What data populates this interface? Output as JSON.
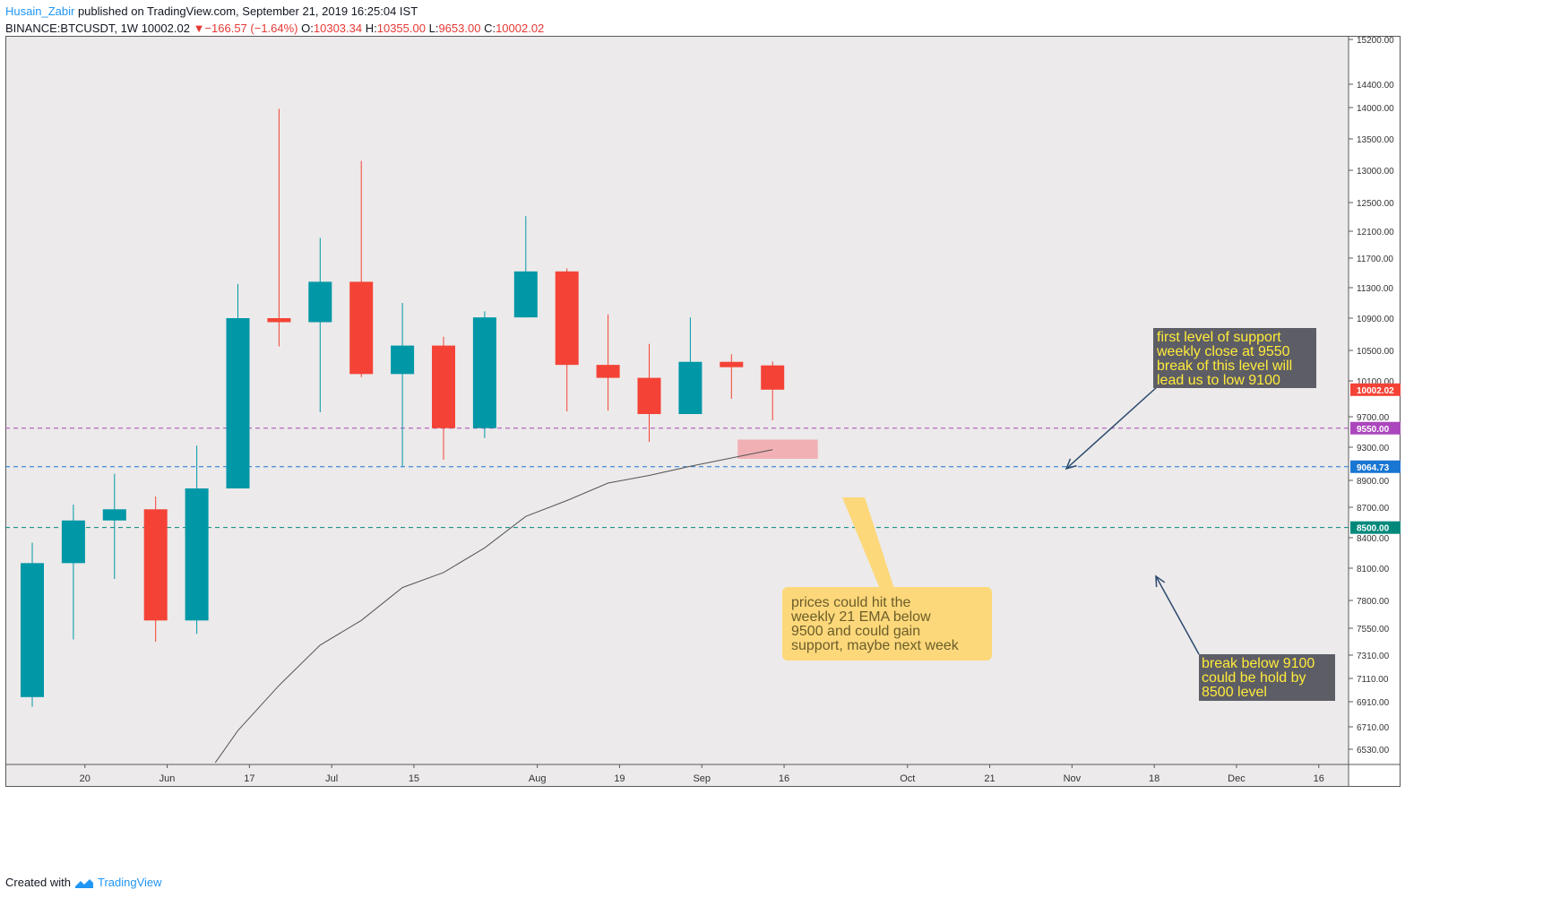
{
  "header": {
    "author": "Husain_Zabir",
    "published_text": "published on TradingView.com, September 21, 2019 16:25:04 IST",
    "symbol": "BINANCE:BTCUSDT, 1W",
    "last": "10002.02",
    "change": "−166.57 (−1.64%)",
    "open_label": "O:",
    "open": "10303.34",
    "high_label": "H:",
    "high": "10355.00",
    "low_label": "L:",
    "low": "9653.00",
    "close_label": "C:",
    "close": "10002.02"
  },
  "footer": {
    "created_with": "Created with",
    "brand": "TradingView"
  },
  "colors": {
    "up": "#0097a7",
    "down": "#f44336",
    "ema": "#555555",
    "support_purple": "#ab47bc",
    "support_blue": "#1976d2",
    "support_green": "#00897b",
    "bg": "#eceaea",
    "callout_dark": "#5d5d66",
    "callout_yellow_text": "#ffeb3b",
    "callout_light": "#fdd87a",
    "zone": "#f2a6aa"
  },
  "chart_data": {
    "type": "candlestick",
    "interval": "1W",
    "y_ticks": [
      15200,
      14400,
      14000,
      13500,
      13000,
      12500,
      12100,
      11700,
      11300,
      10900,
      10500,
      10100,
      9700,
      9300,
      8900,
      8700,
      8400,
      8100,
      7800,
      7550,
      7310,
      7110,
      6910,
      6710,
      6530
    ],
    "y_tick_labels": [
      "15200.00",
      "14400.00",
      "14000.00",
      "13500.00",
      "13000.00",
      "12500.00",
      "12100.00",
      "11700.00",
      "11300.00",
      "10900.00",
      "10500.00",
      "10100.00",
      "9700.00",
      "9300.00",
      "8900.00",
      "8700.00",
      "8400.00",
      "8100.00",
      "7800.00",
      "7550.00",
      "7310.00",
      "7110.00",
      "6910.00",
      "6710.00",
      "6530.00"
    ],
    "x_ticks": [
      {
        "label": "20",
        "i": 1.28
      },
      {
        "label": "Jun",
        "i": 3.28
      },
      {
        "label": "17",
        "i": 5.28
      },
      {
        "label": "Jul",
        "i": 7.28
      },
      {
        "label": "15",
        "i": 9.28
      },
      {
        "label": "Aug",
        "i": 12.28
      },
      {
        "label": "19",
        "i": 14.28
      },
      {
        "label": "Sep",
        "i": 16.28
      },
      {
        "label": "16",
        "i": 18.28
      },
      {
        "label": "Oct",
        "i": 21.28
      },
      {
        "label": "21",
        "i": 23.28
      },
      {
        "label": "Nov",
        "i": 25.28
      },
      {
        "label": "18",
        "i": 27.28
      },
      {
        "label": "Dec",
        "i": 29.28
      },
      {
        "label": "16",
        "i": 31.28
      }
    ],
    "candles": [
      {
        "o": 6950,
        "h": 8350,
        "l": 6870,
        "c": 8150
      },
      {
        "o": 8150,
        "h": 8720,
        "l": 7450,
        "c": 8570
      },
      {
        "o": 8570,
        "h": 8980,
        "l": 8000,
        "c": 8680
      },
      {
        "o": 8680,
        "h": 8780,
        "l": 7430,
        "c": 7620
      },
      {
        "o": 7620,
        "h": 9320,
        "l": 7500,
        "c": 8840
      },
      {
        "o": 8840,
        "h": 11350,
        "l": 8840,
        "c": 10900
      },
      {
        "o": 10900,
        "h": 13980,
        "l": 10550,
        "c": 10850
      },
      {
        "o": 10850,
        "h": 12000,
        "l": 9750,
        "c": 11380
      },
      {
        "o": 11380,
        "h": 13150,
        "l": 10150,
        "c": 10190
      },
      {
        "o": 10190,
        "h": 11100,
        "l": 9070,
        "c": 10560
      },
      {
        "o": 10560,
        "h": 10670,
        "l": 9150,
        "c": 9550
      },
      {
        "o": 9550,
        "h": 10990,
        "l": 9420,
        "c": 10910
      },
      {
        "o": 10910,
        "h": 12310,
        "l": 10910,
        "c": 11520
      },
      {
        "o": 11520,
        "h": 11560,
        "l": 9760,
        "c": 10310
      },
      {
        "o": 10310,
        "h": 10950,
        "l": 9770,
        "c": 10140
      },
      {
        "o": 10140,
        "h": 10580,
        "l": 9370,
        "c": 9730
      },
      {
        "o": 9730,
        "h": 10910,
        "l": 9730,
        "c": 10350
      },
      {
        "o": 10350,
        "h": 10450,
        "l": 9900,
        "c": 10280
      },
      {
        "o": 10303.34,
        "h": 10355,
        "l": 9653,
        "c": 10002.02
      }
    ],
    "ema": [
      {
        "i": 5,
        "v": 6680
      },
      {
        "i": 6,
        "v": 7050
      },
      {
        "i": 7,
        "v": 7400
      },
      {
        "i": 8,
        "v": 7620
      },
      {
        "i": 9,
        "v": 7920
      },
      {
        "i": 10,
        "v": 8060
      },
      {
        "i": 11,
        "v": 8300
      },
      {
        "i": 12,
        "v": 8610
      },
      {
        "i": 13,
        "v": 8750
      },
      {
        "i": 14,
        "v": 8880
      },
      {
        "i": 15,
        "v": 8960
      },
      {
        "i": 16,
        "v": 9070
      },
      {
        "i": 17,
        "v": 9170
      },
      {
        "i": 18,
        "v": 9270
      }
    ],
    "ema_start": {
      "i": 4.45,
      "v": 6430
    },
    "levels": [
      {
        "name": "support-9550",
        "value": 9550,
        "label": "9550.00",
        "color": "#ab47bc"
      },
      {
        "name": "support-9064",
        "value": 9064.73,
        "label": "9064.73",
        "color": "#1976d2"
      },
      {
        "name": "support-8500",
        "value": 8500,
        "label": "8500.00",
        "color": "#00897b"
      }
    ],
    "last_price_label": "10002.02",
    "zone": {
      "i0": 17.15,
      "i1": 19.1,
      "v_top": 9400,
      "v_bottom": 9160
    }
  },
  "annotations": {
    "support_note": [
      "first level of support",
      "weekly close at 9550",
      "break of this level will",
      "lead us to low 9100"
    ],
    "break_note": [
      "break below 9100",
      "could be hold by",
      "8500 level"
    ],
    "ema_note": [
      "prices could hit the",
      "weekly 21 EMA below",
      "9500 and could gain",
      "support, maybe next week"
    ]
  }
}
